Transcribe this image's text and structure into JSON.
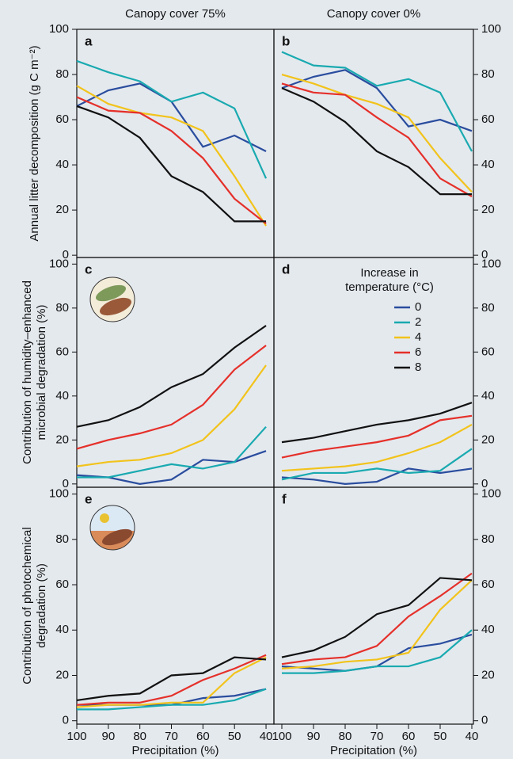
{
  "legend": {
    "title": [
      "Increase in",
      "temperature (°C)"
    ],
    "entries": [
      {
        "name": "0",
        "color": "#2a4d9e"
      },
      {
        "name": "2",
        "color": "#19aab0"
      },
      {
        "name": "4",
        "color": "#f2c31b"
      },
      {
        "name": "6",
        "color": "#e5302a"
      },
      {
        "name": "8",
        "color": "#111111"
      }
    ]
  },
  "chart_data": [
    {
      "type": "line",
      "title": "Canopy cover 75%",
      "letter": "a",
      "y_label": [
        "Annual litter decomposition (g C m⁻²)"
      ],
      "x": [
        100,
        90,
        80,
        70,
        60,
        50,
        40
      ],
      "xlim": [
        100,
        37.5
      ],
      "ylim": [
        -1,
        100
      ],
      "yticks": [
        0,
        20,
        40,
        60,
        80,
        100
      ],
      "series": [
        {
          "values": [
            66,
            73,
            76,
            68,
            48,
            53,
            46
          ]
        },
        {
          "values": [
            86,
            81,
            77,
            68,
            72,
            65,
            34
          ]
        },
        {
          "values": [
            75,
            67,
            63,
            61,
            55,
            35,
            13
          ]
        },
        {
          "values": [
            70,
            64,
            63,
            55,
            43,
            25,
            14
          ]
        },
        {
          "values": [
            66,
            61,
            52,
            35,
            28,
            15,
            15
          ]
        }
      ]
    },
    {
      "type": "line",
      "title": "Canopy cover 0%",
      "letter": "b",
      "x": [
        100,
        90,
        80,
        70,
        60,
        50,
        40
      ],
      "xlim": [
        102.5,
        39.5
      ],
      "ylim": [
        -1,
        100
      ],
      "yticks": [
        0,
        20,
        40,
        60,
        80,
        100
      ],
      "series": [
        {
          "values": [
            74,
            79,
            82,
            74,
            57,
            60,
            55
          ]
        },
        {
          "values": [
            90,
            84,
            83,
            75,
            78,
            72,
            46
          ]
        },
        {
          "values": [
            80,
            76,
            71,
            67,
            61,
            43,
            28
          ]
        },
        {
          "values": [
            76,
            72,
            71,
            61,
            52,
            34,
            26
          ]
        },
        {
          "values": [
            74,
            68,
            59,
            46,
            39,
            27,
            27
          ]
        }
      ]
    },
    {
      "type": "line",
      "letter": "c",
      "y_label": [
        "Contribution of humidity–enhanced",
        "microbial degradation (%)"
      ],
      "x": [
        100,
        90,
        80,
        70,
        60,
        50,
        40
      ],
      "xlim": [
        100,
        37.5
      ],
      "ylim": [
        -1.5,
        103
      ],
      "yticks": [
        0,
        20,
        40,
        60,
        80,
        100
      ],
      "series": [
        {
          "values": [
            4,
            3,
            0,
            2,
            11,
            10,
            15
          ]
        },
        {
          "values": [
            3,
            3,
            6,
            9,
            7,
            10,
            26
          ]
        },
        {
          "values": [
            8,
            10,
            11,
            14,
            20,
            34,
            54
          ]
        },
        {
          "values": [
            16,
            20,
            23,
            27,
            36,
            52,
            63
          ]
        },
        {
          "values": [
            26,
            29,
            35,
            44,
            50,
            62,
            72
          ]
        }
      ]
    },
    {
      "type": "line",
      "letter": "d",
      "legend": true,
      "x": [
        100,
        90,
        80,
        70,
        60,
        50,
        40
      ],
      "xlim": [
        102.5,
        39.5
      ],
      "ylim": [
        -1.5,
        103
      ],
      "yticks": [
        0,
        20,
        40,
        60,
        80,
        100
      ],
      "series": [
        {
          "values": [
            3,
            2,
            0,
            1,
            7,
            5,
            7
          ]
        },
        {
          "values": [
            2,
            5,
            5,
            7,
            5,
            6,
            16
          ]
        },
        {
          "values": [
            6,
            7,
            8,
            10,
            14,
            19,
            27
          ]
        },
        {
          "values": [
            12,
            15,
            17,
            19,
            22,
            29,
            31
          ]
        },
        {
          "values": [
            19,
            21,
            24,
            27,
            29,
            32,
            37
          ]
        }
      ]
    },
    {
      "type": "line",
      "letter": "e",
      "y_label": [
        "Contribution of photochemical",
        "degradation (%)"
      ],
      "x_label": "Precipitation (%)",
      "x": [
        100,
        90,
        80,
        70,
        60,
        50,
        40
      ],
      "xlim": [
        100,
        37.5
      ],
      "ylim": [
        -1.5,
        103
      ],
      "yticks": [
        0,
        20,
        40,
        60,
        80,
        100
      ],
      "xticks": [
        100,
        90,
        80,
        70,
        60,
        50,
        40
      ],
      "series": [
        {
          "values": [
            7,
            7,
            7,
            7,
            10,
            11,
            14
          ]
        },
        {
          "values": [
            5,
            5,
            6,
            7,
            7,
            9,
            14
          ]
        },
        {
          "values": [
            6,
            7,
            7,
            8,
            8,
            21,
            28
          ]
        },
        {
          "values": [
            7,
            8,
            8,
            11,
            18,
            23,
            29
          ]
        },
        {
          "values": [
            9,
            11,
            12,
            20,
            21,
            28,
            27
          ]
        }
      ]
    },
    {
      "type": "line",
      "letter": "f",
      "x_label": "Precipitation (%)",
      "x": [
        100,
        90,
        80,
        70,
        60,
        50,
        40
      ],
      "xlim": [
        102.5,
        39.5
      ],
      "ylim": [
        -1.5,
        103
      ],
      "yticks": [
        0,
        20,
        40,
        60,
        80,
        100
      ],
      "xticks": [
        100,
        90,
        80,
        70,
        60,
        50,
        40
      ],
      "series": [
        {
          "values": [
            24,
            23,
            22,
            24,
            32,
            34,
            38
          ]
        },
        {
          "values": [
            21,
            21,
            22,
            24,
            24,
            28,
            40
          ]
        },
        {
          "values": [
            23,
            24,
            26,
            27,
            30,
            49,
            62
          ]
        },
        {
          "values": [
            25,
            27,
            28,
            33,
            46,
            55,
            65
          ]
        },
        {
          "values": [
            28,
            31,
            37,
            47,
            51,
            63,
            62
          ]
        }
      ]
    }
  ]
}
